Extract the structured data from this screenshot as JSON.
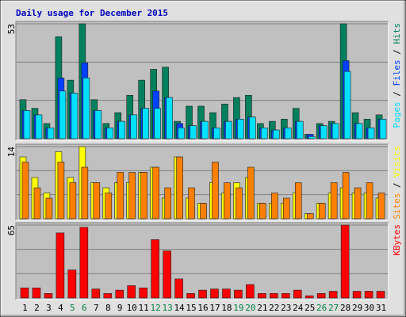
{
  "chart_data": {
    "type": "bar",
    "title": "Daily usage for December 2015",
    "categories": [
      "1",
      "2",
      "3",
      "4",
      "5",
      "6",
      "7",
      "8",
      "9",
      "10",
      "11",
      "12",
      "13",
      "14",
      "15",
      "16",
      "17",
      "18",
      "19",
      "20",
      "21",
      "22",
      "23",
      "24",
      "25",
      "26",
      "27",
      "28",
      "29",
      "30",
      "31"
    ],
    "weekend_indices": [
      4,
      5,
      11,
      12,
      18,
      19,
      25,
      26
    ],
    "weekend_color": "#008040",
    "legend_separator": " / ",
    "panels": [
      {
        "ylim": [
          0,
          53
        ],
        "yticks": [
          53
        ],
        "series": [
          {
            "name": "Hits",
            "color": "#00805c",
            "values": [
              18,
              14,
              7,
              47,
              27,
              53,
              18,
              7,
              12,
              20,
              27,
              32,
              33,
              8,
              15,
              15,
              12,
              16,
              19,
              20,
              7,
              8,
              9,
              14,
              2,
              7,
              8,
              53,
              12,
              9,
              11
            ]
          },
          {
            "name": "Files",
            "color": "#0040ff",
            "values": [
              13,
              11,
              5,
              28,
              21,
              35,
              13,
              5,
              8,
              11,
              14,
              22,
              19,
              7,
              6,
              8,
              5,
              8,
              9,
              10,
              5,
              4,
              5,
              8,
              2,
              6,
              7,
              36,
              7,
              5,
              9
            ]
          },
          {
            "name": "Pages",
            "color": "#00e0ff",
            "values": [
              13,
              11,
              5,
              22,
              21,
              28,
              13,
              5,
              8,
              11,
              14,
              14,
              19,
              5,
              6,
              8,
              5,
              8,
              9,
              10,
              5,
              4,
              5,
              8,
              1,
              6,
              7,
              31,
              7,
              5,
              9
            ]
          }
        ]
      },
      {
        "ylim": [
          0,
          14
        ],
        "yticks": [
          14
        ],
        "series": [
          {
            "name": "Visits",
            "color": "#ffff00",
            "values": [
              12,
              8,
              5,
              13,
              8,
              14,
              7,
              6,
              7,
              7,
              9,
              10,
              4,
              12,
              4,
              3,
              7,
              5,
              7,
              8,
              3,
              3,
              3,
              5,
              1,
              3,
              5,
              6,
              5,
              5,
              4
            ]
          },
          {
            "name": "Sites",
            "color": "#ff8000",
            "values": [
              11,
              6,
              4,
              11,
              7,
              10,
              7,
              5,
              9,
              9,
              9,
              10,
              6,
              12,
              6,
              3,
              11,
              7,
              6,
              10,
              3,
              5,
              4,
              7,
              1,
              3,
              7,
              9,
              6,
              7,
              5
            ]
          }
        ]
      },
      {
        "ylim": [
          0,
          65
        ],
        "yticks": [
          65
        ],
        "series": [
          {
            "name": "KBytes",
            "color": "#ff0000",
            "values": [
              9,
              9,
              4,
              58,
              25,
              63,
              8,
              4,
              7,
              11,
              9,
              52,
              42,
              17,
              4,
              7,
              8,
              8,
              7,
              12,
              4,
              4,
              4,
              7,
              2,
              4,
              6,
              65,
              6,
              6,
              6
            ]
          }
        ]
      }
    ]
  }
}
